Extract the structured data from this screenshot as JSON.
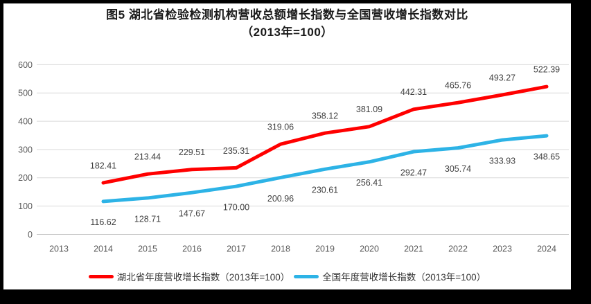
{
  "chart_data": {
    "type": "line",
    "title": "图5 湖北省检验检测机构营收总额增长指数与全国营收增长指数对比",
    "subtitle": "（2013年=100）",
    "categories": [
      "2013",
      "2014",
      "2015",
      "2016",
      "2017",
      "2018",
      "2019",
      "2020",
      "2021",
      "2022",
      "2023",
      "2024"
    ],
    "ylim": [
      0,
      600
    ],
    "yticks": [
      0,
      100,
      200,
      300,
      400,
      500,
      600
    ],
    "grid": true,
    "legend_position": "bottom",
    "series": [
      {
        "name": "湖北省年度营收增长指数（2013年=100）",
        "color": "#ff0000",
        "values": [
          null,
          182.41,
          213.44,
          229.51,
          235.31,
          319.06,
          358.12,
          381.09,
          442.31,
          465.76,
          493.27,
          522.39
        ],
        "label_offset": -25
      },
      {
        "name": "全国年度营收增长指数（2013年=100）",
        "color": "#2db3e6",
        "values": [
          null,
          116.62,
          128.71,
          147.67,
          170.0,
          200.96,
          230.61,
          256.41,
          292.47,
          305.74,
          333.93,
          348.65
        ],
        "label_offset": 30
      }
    ],
    "colors": {
      "gridline": "#d9d9d9",
      "axis_line": "#c6c6c6",
      "tick_text": "#595959",
      "data_label_text": "#404040"
    }
  }
}
